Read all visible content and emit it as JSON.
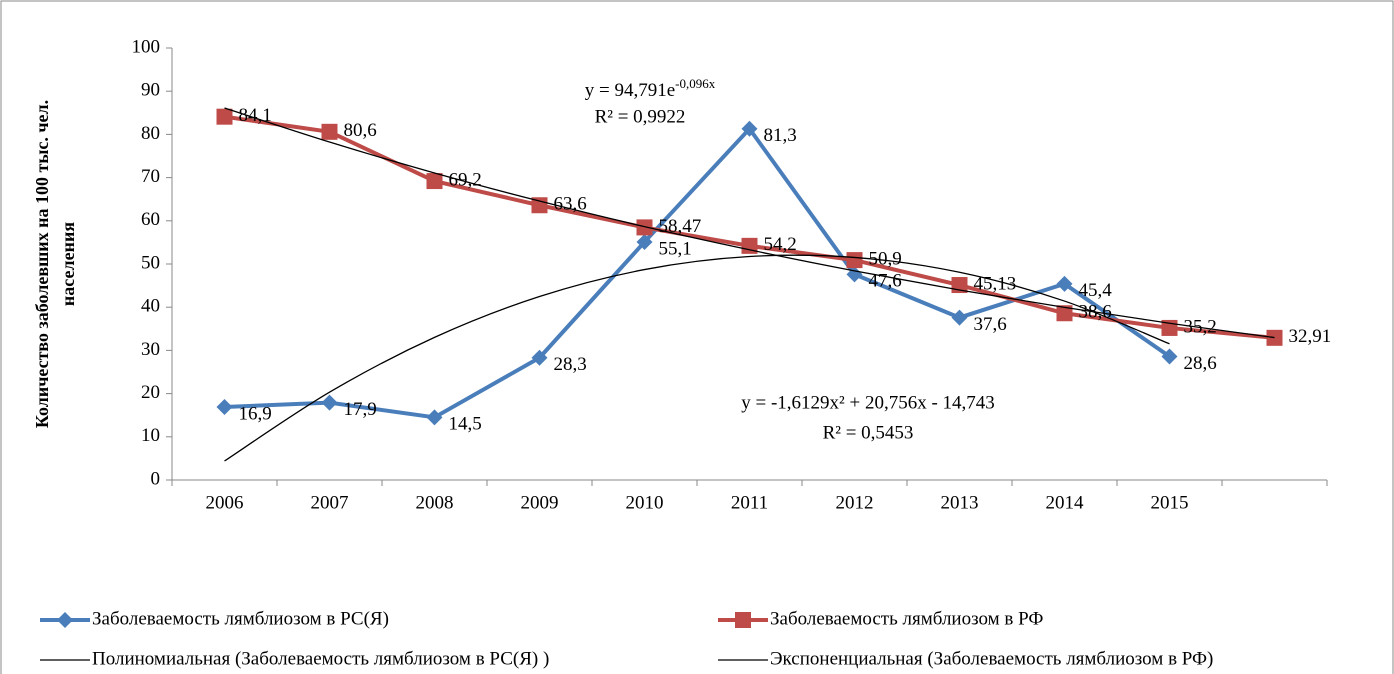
{
  "chart_data": {
    "type": "line",
    "ylabel": [
      "Количество заболевших на 100 тыс. чел.",
      "населения"
    ],
    "categories": [
      "2006",
      "2007",
      "2008",
      "2009",
      "2010",
      "2011",
      "2012",
      "2013",
      "2014",
      "2015",
      null
    ],
    "series": [
      {
        "name": "Заболеваемость лямблиозом в РС(Я)",
        "color": "#4a7ebb",
        "marker": "diamond",
        "values": [
          16.9,
          17.9,
          14.5,
          28.3,
          55.1,
          81.3,
          47.6,
          37.6,
          45.4,
          28.6,
          null
        ],
        "value_labels": [
          "16,9",
          "17,9",
          "14,5",
          "28,3",
          "55,1",
          "81,3",
          "47,6",
          "37,6",
          "45,4",
          "28,6",
          null
        ]
      },
      {
        "name": "Заболеваемость лямблиозом в РФ",
        "color": "#be4b48",
        "marker": "square",
        "values": [
          84.1,
          80.6,
          69.2,
          63.6,
          58.47,
          54.2,
          50.9,
          45.13,
          38.6,
          35.2,
          32.91
        ],
        "value_labels": [
          "84,1",
          "80,6",
          "69,2",
          "63,6",
          "58,47",
          "54,2",
          "50,9",
          "45,13",
          "38,6",
          "35,2",
          "32,91"
        ]
      },
      {
        "name": "Полиномиальная (Заболеваемость лямблиозом в РС(Я) )",
        "color": "#000000",
        "smooth": true,
        "values": [
          4.4,
          20.32,
          33.01,
          42.47,
          48.71,
          51.73,
          51.52,
          48.08,
          41.42,
          31.53,
          null
        ]
      },
      {
        "name": "Экспоненциальная (Заболеваемость лямблиозом в РФ)",
        "color": "#000000",
        "smooth": true,
        "values": [
          86.11,
          78.23,
          71.07,
          64.57,
          58.65,
          53.29,
          48.41,
          43.98,
          39.95,
          36.29,
          32.97
        ]
      }
    ],
    "annotations": {
      "exponential": {
        "text": "y = 94,791e",
        "superscript": "-0,096x",
        "r2": "R² = 0,9922"
      },
      "polynomial": {
        "text": "y = -1,6129x² + 20,756x - 14,743",
        "r2": "R² = 0,5453"
      }
    },
    "ylim": [
      0,
      100
    ],
    "yticks": [
      0,
      10,
      20,
      30,
      40,
      50,
      60,
      70,
      80,
      90,
      100
    ]
  }
}
